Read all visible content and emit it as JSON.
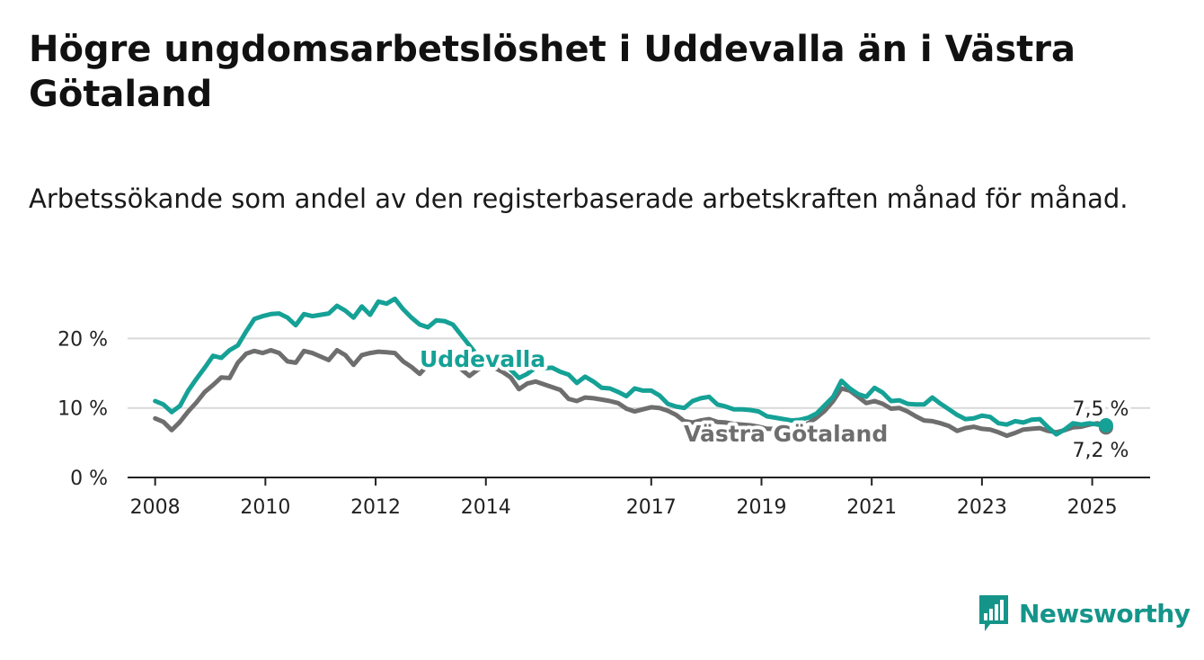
{
  "title": "Högre ungdomsarbetslöshet i Uddevalla än i Västra Götaland",
  "subtitle": "Arbetssökande som andel av den registerbaserade arbetskraften månad för månad.",
  "brand": {
    "name": "Newsworthy",
    "icon": "bar-chart-speech-bubble-icon",
    "color": "#15958a"
  },
  "chart_data": {
    "type": "line",
    "xlabel": "",
    "ylabel": "",
    "x_ticks": [
      2008,
      2010,
      2012,
      2014,
      2017,
      2019,
      2021,
      2023,
      2025
    ],
    "y_ticks": [
      0,
      10,
      20
    ],
    "y_tick_labels": [
      "0 %",
      "10 %",
      "20 %"
    ],
    "xlim": [
      2007.5,
      2026.05
    ],
    "ylim": [
      0,
      26
    ],
    "grid": "horizontal",
    "series": [
      {
        "name": "Uddevalla",
        "color": "#15a196",
        "end_label": "7,5 %",
        "points": [
          [
            2008.0,
            11.0
          ],
          [
            2008.15,
            10.5
          ],
          [
            2008.3,
            9.4
          ],
          [
            2008.45,
            10.3
          ],
          [
            2008.6,
            12.5
          ],
          [
            2008.75,
            14.2
          ],
          [
            2008.9,
            15.8
          ],
          [
            2009.05,
            17.5
          ],
          [
            2009.2,
            17.2
          ],
          [
            2009.35,
            18.3
          ],
          [
            2009.5,
            19.0
          ],
          [
            2009.65,
            21.0
          ],
          [
            2009.8,
            22.8
          ],
          [
            2009.95,
            23.2
          ],
          [
            2010.1,
            23.5
          ],
          [
            2010.25,
            23.6
          ],
          [
            2010.4,
            23.0
          ],
          [
            2010.55,
            21.9
          ],
          [
            2010.7,
            23.5
          ],
          [
            2010.85,
            23.2
          ],
          [
            2011.0,
            23.4
          ],
          [
            2011.15,
            23.6
          ],
          [
            2011.3,
            24.7
          ],
          [
            2011.45,
            24.0
          ],
          [
            2011.6,
            23.0
          ],
          [
            2011.75,
            24.6
          ],
          [
            2011.9,
            23.4
          ],
          [
            2012.05,
            25.3
          ],
          [
            2012.2,
            25.0
          ],
          [
            2012.35,
            25.7
          ],
          [
            2012.5,
            24.2
          ],
          [
            2012.65,
            23.0
          ],
          [
            2012.8,
            22.0
          ],
          [
            2012.95,
            21.6
          ],
          [
            2013.1,
            22.6
          ],
          [
            2013.25,
            22.5
          ],
          [
            2013.4,
            22.0
          ],
          [
            2013.55,
            20.5
          ],
          [
            2013.7,
            19.0
          ],
          [
            2013.85,
            17.5
          ],
          [
            2014.0,
            16.0
          ],
          [
            2014.15,
            16.8
          ],
          [
            2014.3,
            16.5
          ],
          [
            2014.45,
            15.5
          ],
          [
            2014.6,
            14.3
          ],
          [
            2014.75,
            14.9
          ],
          [
            2014.9,
            15.8
          ],
          [
            2015.05,
            15.7
          ],
          [
            2015.2,
            15.8
          ],
          [
            2015.35,
            15.2
          ],
          [
            2015.5,
            14.8
          ],
          [
            2015.65,
            13.6
          ],
          [
            2015.8,
            14.5
          ],
          [
            2015.95,
            13.8
          ],
          [
            2016.1,
            12.9
          ],
          [
            2016.25,
            12.8
          ],
          [
            2016.4,
            12.3
          ],
          [
            2016.55,
            11.7
          ],
          [
            2016.7,
            12.8
          ],
          [
            2016.85,
            12.5
          ],
          [
            2017.0,
            12.5
          ],
          [
            2017.15,
            11.8
          ],
          [
            2017.3,
            10.6
          ],
          [
            2017.45,
            10.2
          ],
          [
            2017.6,
            10.0
          ],
          [
            2017.75,
            11.0
          ],
          [
            2017.9,
            11.4
          ],
          [
            2018.05,
            11.6
          ],
          [
            2018.2,
            10.5
          ],
          [
            2018.35,
            10.2
          ],
          [
            2018.5,
            9.8
          ],
          [
            2018.65,
            9.8
          ],
          [
            2018.8,
            9.7
          ],
          [
            2018.95,
            9.5
          ],
          [
            2019.1,
            8.8
          ],
          [
            2019.25,
            8.6
          ],
          [
            2019.4,
            8.4
          ],
          [
            2019.55,
            8.2
          ],
          [
            2019.7,
            8.3
          ],
          [
            2019.85,
            8.6
          ],
          [
            2020.0,
            9.2
          ],
          [
            2020.15,
            10.4
          ],
          [
            2020.3,
            11.6
          ],
          [
            2020.45,
            13.9
          ],
          [
            2020.6,
            12.8
          ],
          [
            2020.75,
            12.0
          ],
          [
            2020.9,
            11.6
          ],
          [
            2021.05,
            12.9
          ],
          [
            2021.2,
            12.2
          ],
          [
            2021.35,
            11.0
          ],
          [
            2021.5,
            11.1
          ],
          [
            2021.65,
            10.6
          ],
          [
            2021.8,
            10.5
          ],
          [
            2021.95,
            10.5
          ],
          [
            2022.1,
            11.5
          ],
          [
            2022.25,
            10.6
          ],
          [
            2022.4,
            9.8
          ],
          [
            2022.55,
            9.0
          ],
          [
            2022.7,
            8.4
          ],
          [
            2022.85,
            8.5
          ],
          [
            2023.0,
            8.9
          ],
          [
            2023.15,
            8.7
          ],
          [
            2023.3,
            7.8
          ],
          [
            2023.45,
            7.6
          ],
          [
            2023.6,
            8.1
          ],
          [
            2023.75,
            7.9
          ],
          [
            2023.9,
            8.3
          ],
          [
            2024.05,
            8.4
          ],
          [
            2024.2,
            7.2
          ],
          [
            2024.35,
            6.2
          ],
          [
            2024.5,
            6.9
          ],
          [
            2024.65,
            7.8
          ],
          [
            2024.8,
            7.6
          ],
          [
            2024.95,
            7.8
          ],
          [
            2025.1,
            7.6
          ],
          [
            2025.25,
            7.5
          ]
        ]
      },
      {
        "name": "Västra Götaland",
        "color": "#6e6e6e",
        "end_label": "7,2 %",
        "points": [
          [
            2008.0,
            8.5
          ],
          [
            2008.15,
            8.0
          ],
          [
            2008.3,
            6.8
          ],
          [
            2008.45,
            8.0
          ],
          [
            2008.6,
            9.5
          ],
          [
            2008.75,
            10.8
          ],
          [
            2008.9,
            12.3
          ],
          [
            2009.05,
            13.3
          ],
          [
            2009.2,
            14.4
          ],
          [
            2009.35,
            14.3
          ],
          [
            2009.5,
            16.5
          ],
          [
            2009.65,
            17.8
          ],
          [
            2009.8,
            18.2
          ],
          [
            2009.95,
            17.9
          ],
          [
            2010.1,
            18.3
          ],
          [
            2010.25,
            17.9
          ],
          [
            2010.4,
            16.7
          ],
          [
            2010.55,
            16.5
          ],
          [
            2010.7,
            18.2
          ],
          [
            2010.85,
            17.9
          ],
          [
            2011.0,
            17.4
          ],
          [
            2011.15,
            16.9
          ],
          [
            2011.3,
            18.3
          ],
          [
            2011.45,
            17.6
          ],
          [
            2011.6,
            16.2
          ],
          [
            2011.75,
            17.6
          ],
          [
            2011.9,
            17.9
          ],
          [
            2012.05,
            18.1
          ],
          [
            2012.2,
            18.0
          ],
          [
            2012.35,
            17.9
          ],
          [
            2012.5,
            16.7
          ],
          [
            2012.65,
            15.9
          ],
          [
            2012.8,
            14.9
          ],
          [
            2012.95,
            16.2
          ],
          [
            2013.1,
            17.0
          ],
          [
            2013.25,
            17.4
          ],
          [
            2013.4,
            16.6
          ],
          [
            2013.55,
            15.6
          ],
          [
            2013.7,
            14.6
          ],
          [
            2013.85,
            15.5
          ],
          [
            2014.0,
            16.2
          ],
          [
            2014.15,
            15.8
          ],
          [
            2014.3,
            15.2
          ],
          [
            2014.45,
            14.4
          ],
          [
            2014.6,
            12.7
          ],
          [
            2014.75,
            13.5
          ],
          [
            2014.9,
            13.8
          ],
          [
            2015.05,
            13.4
          ],
          [
            2015.2,
            13.0
          ],
          [
            2015.35,
            12.6
          ],
          [
            2015.5,
            11.3
          ],
          [
            2015.65,
            11.0
          ],
          [
            2015.8,
            11.5
          ],
          [
            2015.95,
            11.4
          ],
          [
            2016.1,
            11.2
          ],
          [
            2016.25,
            11.0
          ],
          [
            2016.4,
            10.7
          ],
          [
            2016.55,
            9.9
          ],
          [
            2016.7,
            9.5
          ],
          [
            2016.85,
            9.8
          ],
          [
            2017.0,
            10.1
          ],
          [
            2017.15,
            10.0
          ],
          [
            2017.3,
            9.6
          ],
          [
            2017.45,
            9.0
          ],
          [
            2017.6,
            8.1
          ],
          [
            2017.75,
            7.9
          ],
          [
            2017.9,
            8.2
          ],
          [
            2018.05,
            8.4
          ],
          [
            2018.2,
            8.0
          ],
          [
            2018.35,
            7.9
          ],
          [
            2018.5,
            7.7
          ],
          [
            2018.65,
            7.6
          ],
          [
            2018.8,
            7.5
          ],
          [
            2018.95,
            7.3
          ],
          [
            2019.1,
            7.0
          ],
          [
            2019.25,
            7.0
          ],
          [
            2019.4,
            7.1
          ],
          [
            2019.55,
            7.2
          ],
          [
            2019.7,
            7.3
          ],
          [
            2019.85,
            7.8
          ],
          [
            2020.0,
            8.6
          ],
          [
            2020.15,
            9.6
          ],
          [
            2020.3,
            11.0
          ],
          [
            2020.45,
            12.8
          ],
          [
            2020.6,
            12.5
          ],
          [
            2020.75,
            11.6
          ],
          [
            2020.9,
            10.7
          ],
          [
            2021.05,
            11.0
          ],
          [
            2021.2,
            10.6
          ],
          [
            2021.35,
            9.9
          ],
          [
            2021.5,
            10.0
          ],
          [
            2021.65,
            9.5
          ],
          [
            2021.8,
            8.8
          ],
          [
            2021.95,
            8.2
          ],
          [
            2022.1,
            8.1
          ],
          [
            2022.25,
            7.8
          ],
          [
            2022.4,
            7.4
          ],
          [
            2022.55,
            6.7
          ],
          [
            2022.7,
            7.1
          ],
          [
            2022.85,
            7.3
          ],
          [
            2023.0,
            7.0
          ],
          [
            2023.15,
            6.9
          ],
          [
            2023.3,
            6.5
          ],
          [
            2023.45,
            6.0
          ],
          [
            2023.6,
            6.4
          ],
          [
            2023.75,
            6.9
          ],
          [
            2023.9,
            7.0
          ],
          [
            2024.05,
            7.1
          ],
          [
            2024.2,
            6.7
          ],
          [
            2024.35,
            6.5
          ],
          [
            2024.5,
            6.8
          ],
          [
            2024.65,
            7.2
          ],
          [
            2024.8,
            7.3
          ],
          [
            2024.95,
            7.6
          ],
          [
            2025.1,
            7.8
          ],
          [
            2025.25,
            7.2
          ]
        ]
      }
    ]
  }
}
